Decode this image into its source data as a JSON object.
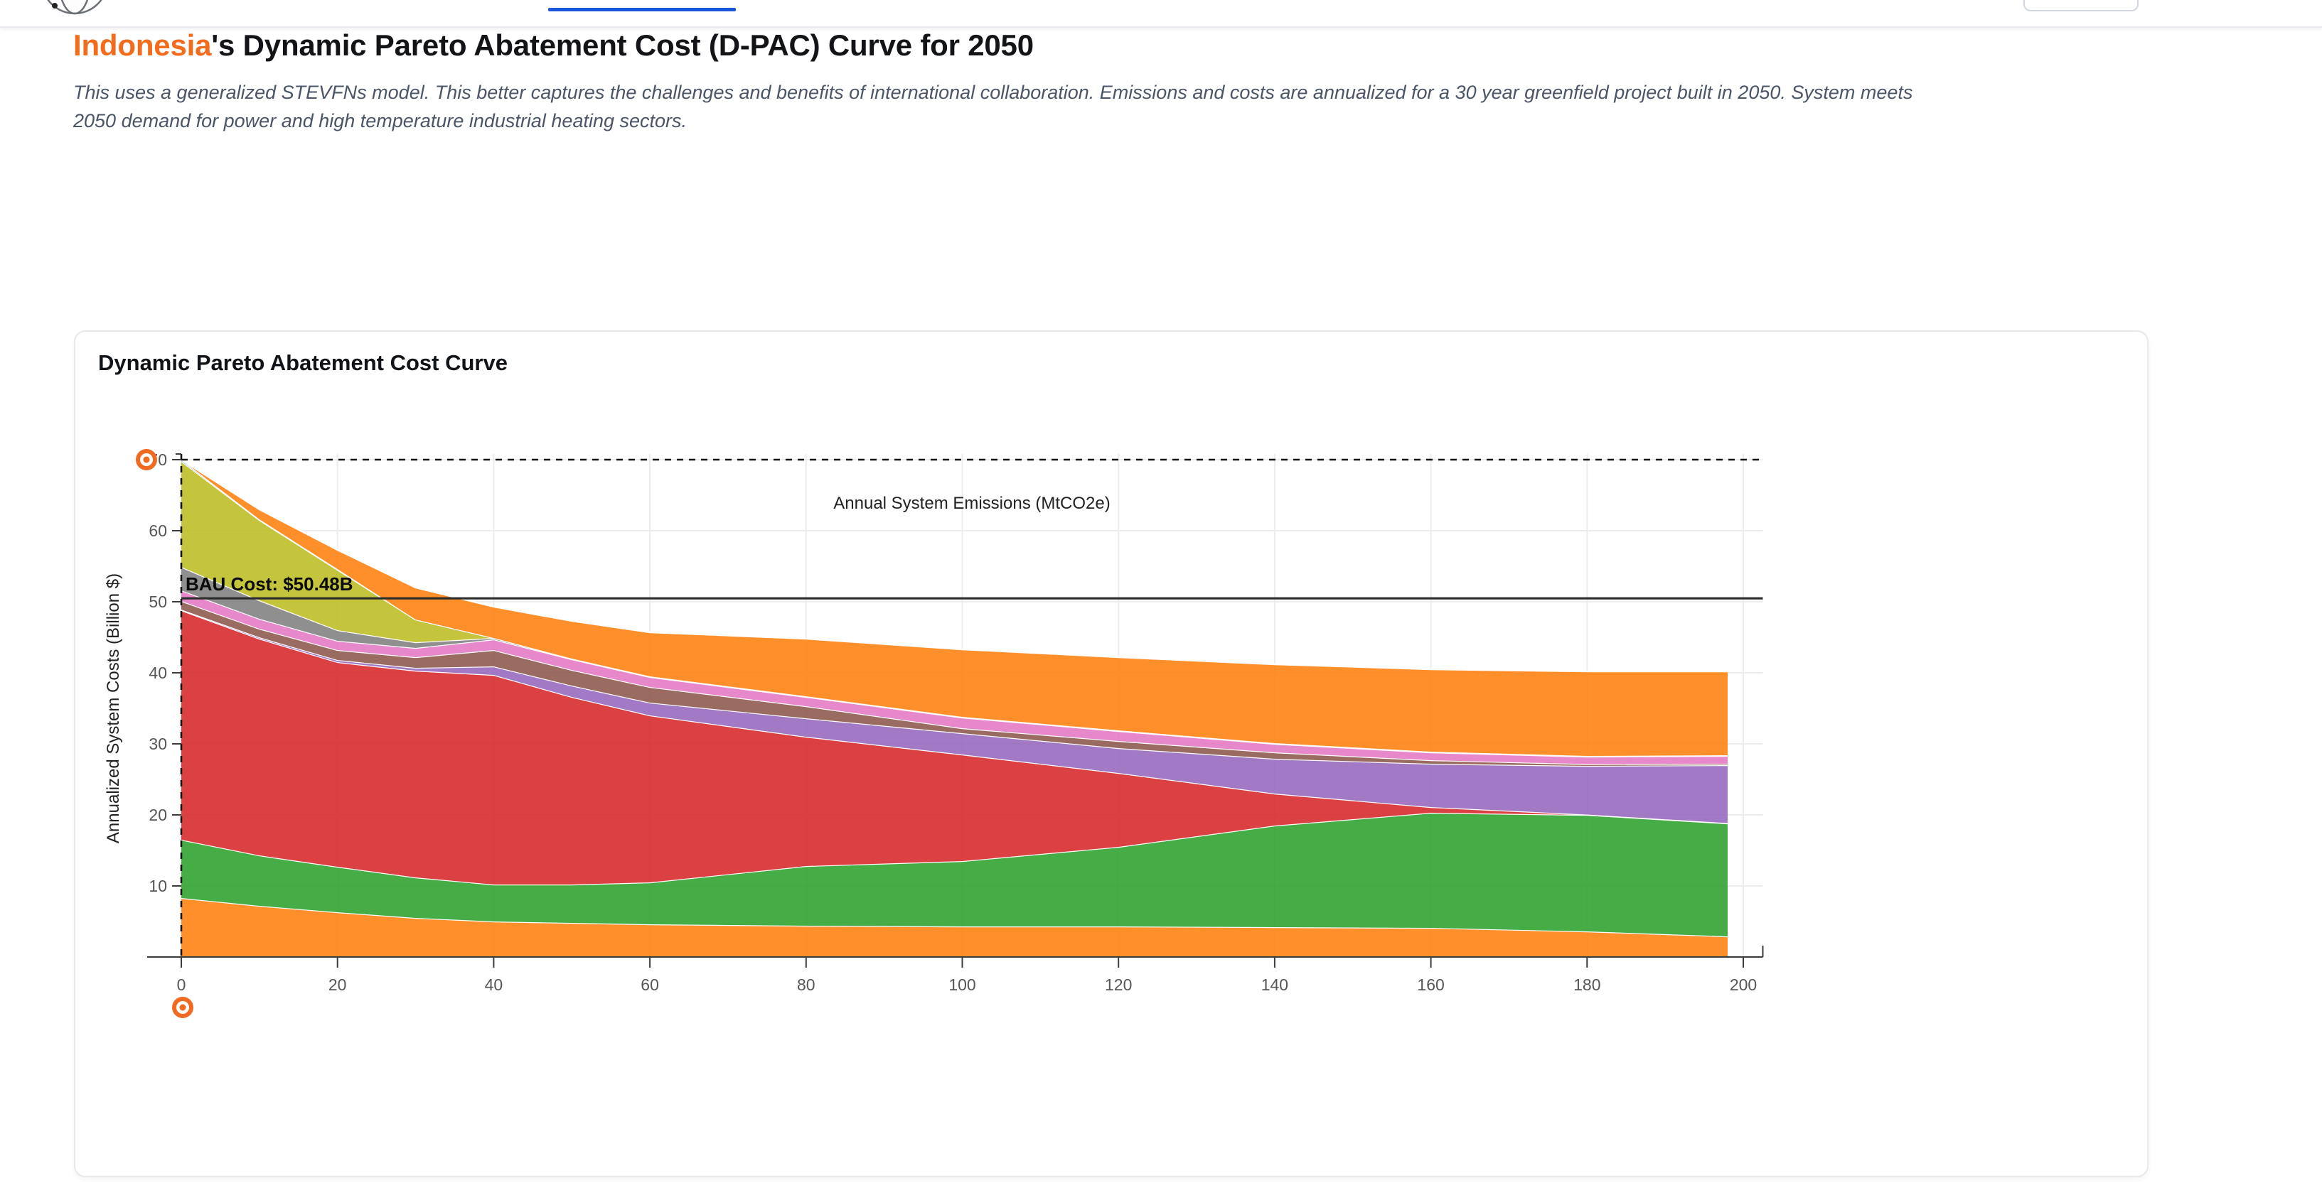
{
  "nav": {
    "active_tab_color": "#1a56db",
    "logo": "globe-logo"
  },
  "header": {
    "country": "Indonesia",
    "country_color": "#f26c1b",
    "title_rest": "'s Dynamic Pareto Abatement Cost (D-PAC) Curve for 2050",
    "subtitle_line1": "This uses a generalized STEVFNs model. This better captures the challenges and benefits of international collaboration. Emissions and costs are annualized for a 30 year greenfield project built in 2050. System meets",
    "subtitle_line2": "2050 demand for power and high temperature industrial heating sectors."
  },
  "card": {
    "title": "Dynamic Pareto Abatement Cost Curve"
  },
  "chart_data": {
    "type": "area",
    "stacked": true,
    "title": "Dynamic Pareto Abatement Cost Curve",
    "xlabel": "Annual System Emissions (MtCO2e)",
    "ylabel": "Annualized System Costs (Billion $)",
    "xlim": [
      -4.4,
      202.5
    ],
    "ylim": [
      0,
      70.8
    ],
    "grid": true,
    "legend": "none",
    "x_ticks": [
      0,
      20,
      40,
      60,
      80,
      100,
      120,
      140,
      160,
      180,
      200
    ],
    "y_ticks": [
      10,
      20,
      30,
      40,
      50,
      60,
      70
    ],
    "x": [
      0,
      10,
      20,
      30,
      40,
      50,
      60,
      80,
      100,
      120,
      140,
      160,
      180,
      198
    ],
    "series": [
      {
        "name": "orange-base",
        "color": "#ff7f0e",
        "values": [
          8.3,
          7.2,
          6.3,
          5.5,
          5.0,
          4.8,
          4.6,
          4.4,
          4.3,
          4.3,
          4.2,
          4.1,
          3.6,
          2.9
        ]
      },
      {
        "name": "green",
        "color": "#2ca02c",
        "values": [
          8.2,
          7.1,
          6.4,
          5.7,
          5.2,
          5.4,
          5.9,
          8.4,
          9.2,
          11.2,
          14.3,
          16.2,
          16.4,
          15.9
        ]
      },
      {
        "name": "red",
        "color": "#d62728",
        "values": [
          32.3,
          30.5,
          28.8,
          29.1,
          29.5,
          26.4,
          23.5,
          18.2,
          15.0,
          10.4,
          4.5,
          0.8,
          0.05,
          0.05
        ]
      },
      {
        "name": "purple",
        "color": "#9467bd",
        "values": [
          0.1,
          0.2,
          0.3,
          0.4,
          1.2,
          1.6,
          1.8,
          2.6,
          3.0,
          3.5,
          4.9,
          6.1,
          6.85,
          8.15
        ]
      },
      {
        "name": "brown",
        "color": "#8c564b",
        "values": [
          1.2,
          1.2,
          1.4,
          1.5,
          2.3,
          2.2,
          2.2,
          1.7,
          0.7,
          1.0,
          0.9,
          0.5,
          0.25,
          0.2
        ]
      },
      {
        "name": "pink",
        "color": "#e377c2",
        "values": [
          1.5,
          1.4,
          1.3,
          1.3,
          1.5,
          1.5,
          1.4,
          1.3,
          1.5,
          1.4,
          1.2,
          1.1,
          1.05,
          1.1
        ]
      },
      {
        "name": "gray",
        "color": "#7f7f7f",
        "values": [
          3.3,
          2.6,
          1.5,
          0.8,
          0.2,
          0.1,
          0.1,
          0.1,
          0.1,
          0.1,
          0.1,
          0.1,
          0.1,
          0.1
        ]
      },
      {
        "name": "olive",
        "color": "#bcbd22",
        "values": [
          14.9,
          11.3,
          8.5,
          3.2,
          0,
          0,
          0,
          0,
          0,
          0,
          0,
          0,
          0,
          0
        ]
      },
      {
        "name": "blue-sliver",
        "color": "#1f77b4",
        "values": [
          0.2,
          0.1,
          0.1,
          0,
          0,
          0,
          0,
          0,
          0,
          0,
          0,
          0,
          0,
          0
        ]
      },
      {
        "name": "orange-top",
        "color": "#ff7f0e",
        "values": [
          0,
          1.4,
          2.7,
          4.5,
          4.4,
          5.3,
          6.2,
          8.1,
          9.5,
          10.3,
          11.1,
          11.6,
          11.9,
          11.8
        ]
      }
    ],
    "bau_line": {
      "label": "BAU Cost: $50.48B",
      "value": 50.48
    },
    "net_zero": {
      "emissions": 0,
      "cost": 70,
      "marker_color": "#f06a21"
    }
  }
}
